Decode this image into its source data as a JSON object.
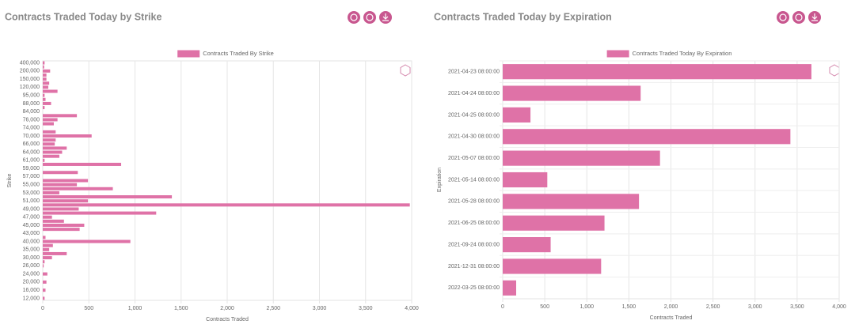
{
  "chart_data": [
    {
      "type": "hbar",
      "title": "Contracts Traded Today by Strike",
      "x_label": "Contracts Traded",
      "y_label": "Strike",
      "categories": [
        "400,000",
        null,
        "200,000",
        null,
        "150,000",
        null,
        "120,000",
        null,
        "95,000",
        null,
        "88,000",
        null,
        "84,000",
        null,
        "76,000",
        null,
        "74,000",
        null,
        "70,000",
        null,
        "66,000",
        null,
        "64,000",
        null,
        "61,000",
        null,
        "59,000",
        null,
        "57,000",
        null,
        "55,000",
        null,
        "53,000",
        null,
        "51,000",
        null,
        "49,000",
        null,
        "47,000",
        null,
        "45,000",
        null,
        "43,000",
        null,
        "40,000",
        null,
        "35,000",
        null,
        "30,000",
        null,
        "26,000",
        null,
        "24,000",
        null,
        "20,000",
        null,
        "16,000",
        null,
        "12,000"
      ],
      "series": [
        {
          "name": "Contracts Traded By Strike",
          "color": "#df72a7",
          "values": [
            20,
            15,
            80,
            40,
            40,
            70,
            60,
            160,
            20,
            30,
            90,
            20,
            0,
            370,
            160,
            120,
            0,
            140,
            530,
            140,
            130,
            260,
            210,
            180,
            20,
            850,
            0,
            380,
            0,
            490,
            370,
            760,
            180,
            1400,
            490,
            3980,
            390,
            1230,
            100,
            230,
            450,
            400,
            0,
            30,
            950,
            110,
            70,
            260,
            100,
            20,
            10,
            0,
            50,
            0,
            40,
            0,
            30,
            0,
            20
          ]
        }
      ],
      "xlim": [
        0,
        4000
      ],
      "xticks": [
        0,
        500,
        {
          "value": 1000,
          "label": "1,000"
        },
        {
          "value": 1500,
          "label": "1,500"
        },
        {
          "value": 2000,
          "label": "2,000"
        },
        {
          "value": 2500,
          "label": "2,500"
        },
        {
          "value": 3000,
          "label": "3,000"
        },
        {
          "value": 3500,
          "label": "3,500"
        },
        {
          "value": 4000,
          "label": "4,000"
        }
      ],
      "grid": true
    },
    {
      "type": "hbar",
      "title": "Contracts Traded Today by Expiration",
      "x_label": "Contracts Traded",
      "y_label": "Expiration",
      "categories": [
        "2021-04-23 08:00:00",
        "2021-04-24 08:00:00",
        "2021-04-25 08:00:00",
        "2021-04-30 08:00:00",
        "2021-05-07 08:00:00",
        "2021-05-14 08:00:00",
        "2021-05-28 08:00:00",
        "2021-06-25 08:00:00",
        "2021-09-24 08:00:00",
        "2021-12-31 08:00:00",
        "2022-03-25 08:00:00"
      ],
      "series": [
        {
          "name": "Contracts Traded Today By Expiration",
          "color": "#df72a7",
          "values": [
            3670,
            1640,
            330,
            3420,
            1870,
            530,
            1620,
            1210,
            570,
            1170,
            160
          ]
        }
      ],
      "xlim": [
        0,
        4000
      ],
      "xticks": [
        0,
        500,
        {
          "value": 1000,
          "label": "1,000"
        },
        {
          "value": 1500,
          "label": "1,500"
        },
        {
          "value": 2000,
          "label": "2,000"
        },
        {
          "value": 2500,
          "label": "2,500"
        },
        {
          "value": 3000,
          "label": "3,000"
        },
        {
          "value": 3500,
          "label": "3,500"
        },
        {
          "value": 4000,
          "label": "4,000"
        }
      ],
      "grid": true
    }
  ]
}
